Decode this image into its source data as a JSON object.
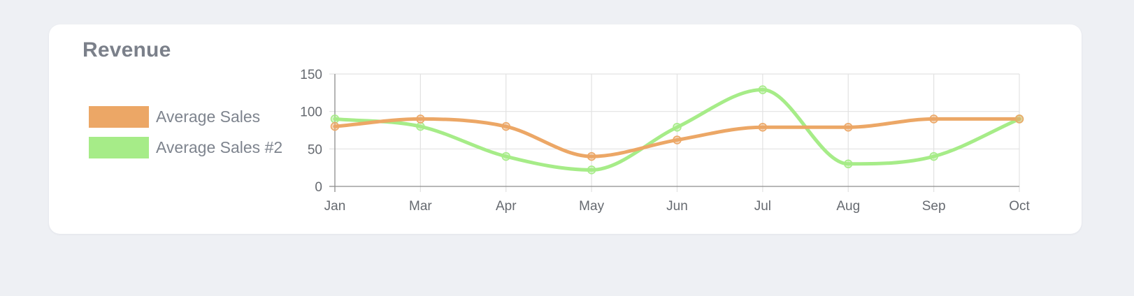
{
  "card": {
    "title": "Revenue"
  },
  "colors": {
    "background": "#eef0f4",
    "card": "#ffffff",
    "grid": "#e2e2e2",
    "axis": "#8d8d8d"
  },
  "chart_data": {
    "type": "line",
    "title": "Revenue",
    "xlabel": "",
    "ylabel": "",
    "categories": [
      "Jan",
      "Mar",
      "Apr",
      "May",
      "Jun",
      "Jul",
      "Aug",
      "Sep",
      "Oct"
    ],
    "ylim": [
      0,
      150
    ],
    "yticks": [
      0,
      50,
      100,
      150
    ],
    "grid": true,
    "legend_position": "left",
    "smooth": true,
    "series": [
      {
        "name": "Average Sales",
        "color": "#eca766",
        "values": [
          80,
          90,
          80,
          40,
          62,
          79,
          79,
          90,
          90
        ]
      },
      {
        "name": "Average Sales #2",
        "color": "#a6ec88",
        "values": [
          90,
          80,
          40,
          22,
          79,
          129,
          30,
          40,
          90
        ]
      }
    ]
  }
}
